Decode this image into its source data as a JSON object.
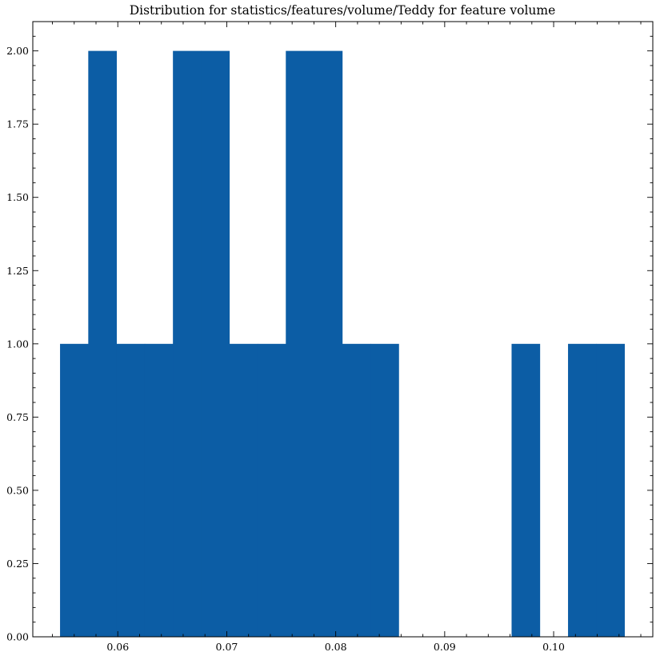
{
  "chart_data": {
    "type": "bar",
    "title": "Distribution for statistics/features/volume/Teddy for feature volume",
    "xlabel": "",
    "ylabel": "",
    "bin_edges": [
      0.0547,
      0.05729,
      0.05988,
      0.06247,
      0.06506,
      0.06765,
      0.07024,
      0.07283,
      0.07542,
      0.07801,
      0.0806,
      0.08319,
      0.08578,
      0.08837,
      0.09096,
      0.09355,
      0.09614,
      0.09873,
      0.10132,
      0.10391,
      0.1065
    ],
    "counts": [
      1,
      2,
      1,
      1,
      2,
      2,
      1,
      1,
      2,
      2,
      1,
      1,
      0,
      0,
      0,
      0,
      1,
      0,
      1,
      1
    ],
    "xlim": [
      0.0522,
      0.1091
    ],
    "ylim": [
      0,
      2.1
    ],
    "x_ticks": [
      {
        "value": 0.06,
        "label": "0.06"
      },
      {
        "value": 0.07,
        "label": "0.07"
      },
      {
        "value": 0.08,
        "label": "0.08"
      },
      {
        "value": 0.09,
        "label": "0.09"
      },
      {
        "value": 0.1,
        "label": "0.10"
      }
    ],
    "y_ticks": [
      {
        "value": 0.0,
        "label": "0.00"
      },
      {
        "value": 0.25,
        "label": "0.25"
      },
      {
        "value": 0.5,
        "label": "0.50"
      },
      {
        "value": 0.75,
        "label": "0.75"
      },
      {
        "value": 1.0,
        "label": "1.00"
      },
      {
        "value": 1.25,
        "label": "1.25"
      },
      {
        "value": 1.5,
        "label": "1.50"
      },
      {
        "value": 1.75,
        "label": "1.75"
      },
      {
        "value": 2.0,
        "label": "2.00"
      }
    ],
    "x_minor_step": 0.002,
    "y_minor_step": 0.05,
    "grid": false,
    "bar_color": "#0C5DA5",
    "axis_color": "#000000"
  }
}
